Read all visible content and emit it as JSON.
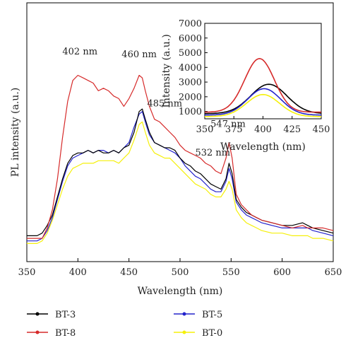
{
  "chart_data": [
    {
      "type": "line",
      "title": "",
      "xlabel": "Wavelength (nm)",
      "ylabel": "PL intensity (a.u.)",
      "xlim": [
        350,
        650
      ],
      "ylim": [
        0,
        100
      ],
      "y_ticks_shown": false,
      "x_ticks": [
        350,
        400,
        450,
        500,
        550,
        600,
        650
      ],
      "grid": false,
      "legend_position": "bottom",
      "x": [
        350,
        360,
        365,
        370,
        375,
        380,
        385,
        390,
        395,
        400,
        405,
        410,
        415,
        420,
        425,
        430,
        435,
        440,
        445,
        450,
        455,
        460,
        463,
        466,
        470,
        475,
        480,
        485,
        490,
        495,
        500,
        505,
        510,
        515,
        520,
        525,
        530,
        535,
        540,
        545,
        548,
        551,
        555,
        560,
        565,
        570,
        575,
        580,
        590,
        600,
        610,
        620,
        625,
        630,
        640,
        650
      ],
      "series": [
        {
          "name": "BT-3",
          "color": "#000000",
          "values": [
            10,
            10,
            11,
            14,
            18,
            25,
            32,
            38,
            41,
            42,
            42,
            43,
            42,
            43,
            42,
            42,
            43,
            42,
            44,
            45,
            50,
            58,
            59,
            55,
            50,
            46,
            45,
            44,
            44,
            43,
            40,
            38,
            37,
            35,
            34,
            32,
            30,
            29,
            28,
            32,
            38,
            34,
            24,
            21,
            19,
            18,
            17,
            16,
            15,
            14,
            14,
            15,
            14,
            13,
            12,
            11
          ]
        },
        {
          "name": "BT-8",
          "color": "#d62a2a",
          "values": [
            9,
            9,
            9,
            13,
            20,
            32,
            48,
            62,
            70,
            72,
            71,
            70,
            69,
            66,
            67,
            66,
            64,
            63,
            60,
            63,
            67,
            72,
            71,
            66,
            60,
            55,
            54,
            52,
            50,
            48,
            45,
            43,
            42,
            41,
            40,
            38,
            37,
            35,
            34,
            40,
            46,
            40,
            26,
            22,
            20,
            18,
            17,
            16,
            15,
            14,
            13,
            14,
            13,
            13,
            13,
            12
          ]
        },
        {
          "name": "BT-5",
          "color": "#2323cc",
          "values": [
            8,
            8,
            9,
            12,
            17,
            24,
            31,
            37,
            40,
            41,
            42,
            43,
            42,
            43,
            43,
            42,
            43,
            42,
            44,
            46,
            52,
            57,
            58,
            54,
            49,
            46,
            45,
            44,
            43,
            42,
            40,
            37,
            35,
            33,
            32,
            30,
            28,
            27,
            27,
            31,
            36,
            32,
            23,
            20,
            18,
            17,
            16,
            15,
            14,
            13,
            13,
            13,
            13,
            12,
            11,
            10
          ]
        },
        {
          "name": "BT-0",
          "color": "#f5f00a",
          "values": [
            7,
            7,
            8,
            11,
            16,
            22,
            28,
            33,
            36,
            37,
            38,
            38,
            38,
            39,
            39,
            39,
            39,
            38,
            40,
            42,
            47,
            53,
            54,
            50,
            45,
            42,
            41,
            40,
            40,
            38,
            36,
            34,
            32,
            30,
            29,
            28,
            26,
            25,
            25,
            28,
            31,
            28,
            20,
            17,
            15,
            14,
            13,
            12,
            11,
            11,
            10,
            10,
            10,
            9,
            9,
            8
          ]
        }
      ],
      "annotations": [
        "402 nm",
        "460 nm",
        "485 nm",
        "532 nm",
        "547 nm"
      ],
      "annotation_x": [
        402,
        460,
        485,
        532,
        547
      ],
      "annotation_y": [
        80,
        79,
        60,
        41,
        52
      ]
    },
    {
      "type": "line",
      "title": "",
      "xlabel": "Wavelength (nm)",
      "ylabel": "Intensity (a.u.)",
      "xlim": [
        350,
        450
      ],
      "ylim": [
        500,
        7000
      ],
      "x_ticks": [
        350,
        375,
        400,
        425,
        450
      ],
      "y_ticks": [
        1000,
        2000,
        3000,
        4000,
        5000,
        6000,
        7000
      ],
      "grid": false,
      "curves": [
        {
          "name": "BT-3",
          "color": "#000000",
          "peak_x": 405,
          "peak_y": 2850,
          "baseline": 850,
          "width": 22
        },
        {
          "name": "BT-8",
          "color": "#d62a2a",
          "peak_x": 397,
          "peak_y": 4600,
          "baseline": 950,
          "width": 18
        },
        {
          "name": "BT-5",
          "color": "#2323cc",
          "peak_x": 401,
          "peak_y": 2550,
          "baseline": 750,
          "width": 20
        },
        {
          "name": "BT-0",
          "color": "#f5f00a",
          "peak_x": 400,
          "peak_y": 2150,
          "baseline": 650,
          "width": 20
        }
      ]
    }
  ],
  "legend": {
    "items": [
      {
        "label": "BT-3",
        "color": "#000000"
      },
      {
        "label": "BT-5",
        "color": "#2323cc"
      },
      {
        "label": "BT-8",
        "color": "#d62a2a"
      },
      {
        "label": "BT-0",
        "color": "#f5f00a"
      }
    ]
  }
}
